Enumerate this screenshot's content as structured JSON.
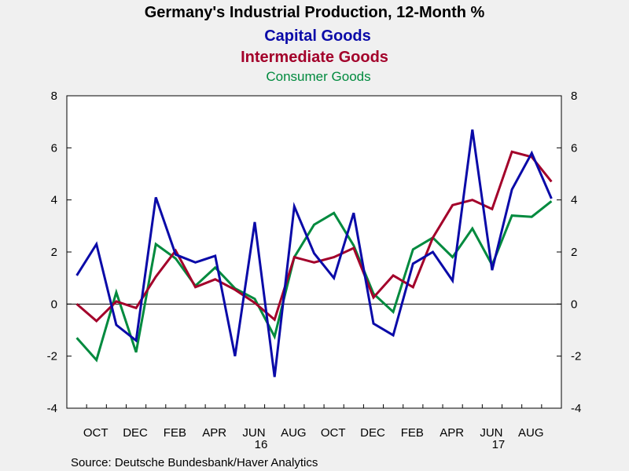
{
  "chart_data": {
    "type": "line",
    "title": "Germany's Industrial Production, 12-Month %",
    "source": "Source:  Deutsche Bundesbank/Haver Analytics",
    "ylim": [
      -4,
      8
    ],
    "yticks": [
      "-4",
      "-2",
      "0",
      "2",
      "4",
      "6",
      "8"
    ],
    "x": [
      "2015-09",
      "2015-10",
      "2015-11",
      "2015-12",
      "2016-01",
      "2016-02",
      "2016-03",
      "2016-04",
      "2016-05",
      "2016-06",
      "2016-07",
      "2016-08",
      "2016-09",
      "2016-10",
      "2016-11",
      "2016-12",
      "2017-01",
      "2017-02",
      "2017-03",
      "2017-04",
      "2017-05",
      "2017-06",
      "2017-07",
      "2017-08",
      "2017-09"
    ],
    "xticks": [
      "OCT",
      "DEC",
      "FEB",
      "APR",
      "JUN",
      "AUG",
      "OCT",
      "DEC",
      "FEB",
      "APR",
      "JUN",
      "AUG"
    ],
    "year_labels": [
      "16",
      "17"
    ],
    "series": [
      {
        "name": "Capital Goods",
        "color": "#0a0aa8",
        "values": [
          1.1,
          2.3,
          -0.8,
          -1.4,
          4.1,
          1.9,
          1.6,
          1.85,
          -2.0,
          3.15,
          -2.8,
          3.75,
          1.95,
          1.0,
          3.5,
          -0.75,
          -1.2,
          1.55,
          2.0,
          0.9,
          6.7,
          1.3,
          4.4,
          5.8,
          4.05
        ]
      },
      {
        "name": "Intermediate Goods",
        "color": "#a3002a",
        "values": [
          0.0,
          -0.65,
          0.1,
          -0.15,
          1.05,
          2.05,
          0.65,
          0.95,
          0.55,
          0.05,
          -0.6,
          1.8,
          1.6,
          1.8,
          2.15,
          0.25,
          1.1,
          0.65,
          2.55,
          3.8,
          4.0,
          3.65,
          5.85,
          5.65,
          4.7
        ]
      },
      {
        "name": "Consumer Goods",
        "color": "#008a3e",
        "values": [
          -1.3,
          -2.15,
          0.45,
          -1.85,
          2.3,
          1.75,
          0.7,
          1.4,
          0.6,
          0.2,
          -1.25,
          1.8,
          3.05,
          3.5,
          2.25,
          0.4,
          -0.3,
          2.1,
          2.55,
          1.8,
          2.9,
          1.5,
          3.4,
          3.35,
          3.95
        ]
      }
    ]
  }
}
